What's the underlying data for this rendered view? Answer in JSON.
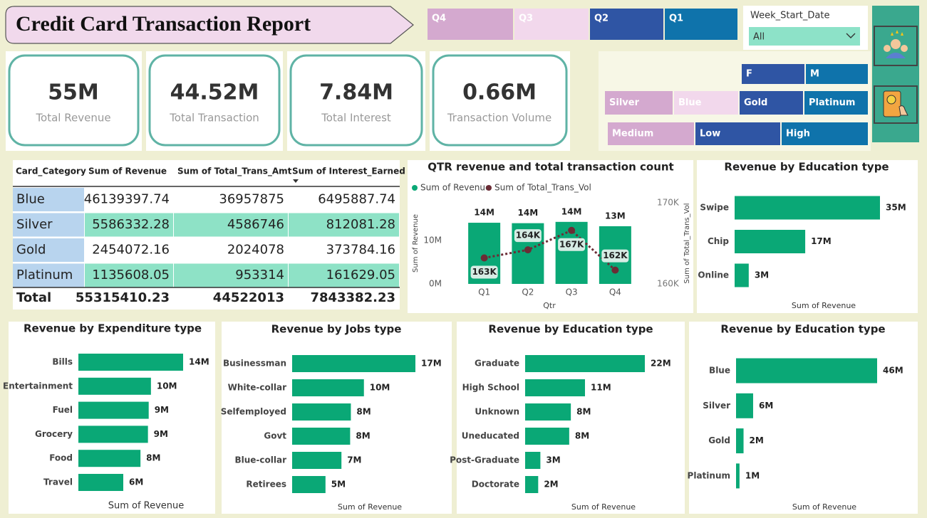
{
  "title": "Credit Card Transaction Report",
  "quarter_slicer": [
    "Q4",
    "Q3",
    "Q2",
    "Q1"
  ],
  "week_slicer": {
    "label": "Week_Start_Date",
    "selected": "All"
  },
  "gender_slicer": [
    "F",
    "M"
  ],
  "card_slicer": [
    "Silver",
    "Blue",
    "Gold",
    "Platinum"
  ],
  "income_slicer": [
    "Medium",
    "Low",
    "High"
  ],
  "kpis": [
    {
      "value": "55M",
      "label": "Total Revenue"
    },
    {
      "value": "44.52M",
      "label": "Total Transaction"
    },
    {
      "value": "7.84M",
      "label": "Total Interest"
    },
    {
      "value": "0.66M",
      "label": "Transaction Volume"
    }
  ],
  "table": {
    "headers": [
      "Card_Category",
      "Sum of Revenue",
      "Sum of Total_Trans_Amt",
      "Sum of Interest_Earned"
    ],
    "rows": [
      [
        "Blue",
        46139397.74,
        36957875,
        6495887.74
      ],
      [
        "Silver",
        5586332.28,
        4586746,
        812081.28
      ],
      [
        "Gold",
        2454072.16,
        2024078,
        373784.16
      ],
      [
        "Platinum",
        1135608.05,
        953314,
        161629.05
      ]
    ],
    "total": [
      "Total",
      55315410.23,
      44522013,
      7843382.23
    ]
  },
  "chart_data": [
    {
      "type": "combo",
      "title": "QTR revenue and total transaction count",
      "categories": [
        "Q1",
        "Q2",
        "Q3",
        "Q4"
      ],
      "series": [
        {
          "name": "Sum of Revenue",
          "color": "#0aa876",
          "kind": "bar",
          "values": [
            14100000,
            14000000,
            14300000,
            13300000
          ],
          "value_labels": [
            "14M",
            "14M",
            "14M",
            "13M"
          ]
        },
        {
          "name": "Sum of Total_Trans_Vol",
          "color": "#6b2c35",
          "kind": "line",
          "axis": "y2",
          "values": [
            163200,
            164200,
            166600,
            161700
          ],
          "value_labels": [
            "163K",
            "164K",
            "167K",
            "162K"
          ]
        }
      ],
      "x_label": "Qtr",
      "y_label": "Sum of Revenue",
      "y2_label": "Sum of Total_Trans_Vol",
      "ylim": [
        0,
        18700000
      ],
      "yticks": [
        {
          "value": 0,
          "label": "0M"
        },
        {
          "value": 10000000,
          "label": "10M"
        }
      ],
      "y2lim": [
        160000,
        170000
      ],
      "y2ticks": [
        {
          "value": 160000,
          "label": "160K"
        },
        {
          "value": 170000,
          "label": "170K"
        }
      ]
    },
    {
      "type": "hbar",
      "title": "Revenue by Education type",
      "color": "#0aa876",
      "categories": [
        "Swipe",
        "Chip",
        "Online"
      ],
      "values": [
        35000000,
        17000000,
        3400000
      ],
      "value_labels": [
        "35M",
        "17M",
        "3M"
      ],
      "x_label": "Sum of Revenue"
    },
    {
      "type": "hbar",
      "title": "Revenue by Expenditure type",
      "color": "#0aa876",
      "categories": [
        "Bills",
        "Entertainment",
        "Fuel",
        "Grocery",
        "Food",
        "Travel"
      ],
      "values": [
        14000000,
        9700000,
        9400000,
        9300000,
        8300000,
        6000000
      ],
      "value_labels": [
        "14M",
        "10M",
        "9M",
        "9M",
        "8M",
        "6M"
      ],
      "x_label": "Sum of Revenue"
    },
    {
      "type": "hbar",
      "title": "Revenue by Jobs type",
      "color": "#0aa876",
      "categories": [
        "Businessman",
        "White-collar",
        "Selfemployed",
        "Govt",
        "Blue-collar",
        "Retirees"
      ],
      "values": [
        17000000,
        9900000,
        8100000,
        8000000,
        6800000,
        4600000
      ],
      "value_labels": [
        "17M",
        "10M",
        "8M",
        "8M",
        "7M",
        "5M"
      ],
      "x_label": "Sum of Revenue"
    },
    {
      "type": "hbar",
      "title": "Revenue by Education type",
      "color": "#0aa876",
      "categories": [
        "Graduate",
        "High School",
        "Unknown",
        "Uneducated",
        "Post-Graduate",
        "Doctorate"
      ],
      "values": [
        22000000,
        11000000,
        8400000,
        8100000,
        2800000,
        2400000
      ],
      "value_labels": [
        "22M",
        "11M",
        "8M",
        "8M",
        "3M",
        "2M"
      ],
      "x_label": "Sum of Revenue"
    },
    {
      "type": "hbar",
      "title": "Revenue by Education type",
      "color": "#0aa876",
      "categories": [
        "Blue",
        "Silver",
        "Gold",
        "Platinum"
      ],
      "values": [
        46139397.74,
        5586332.28,
        2454072.16,
        1135608.05
      ],
      "value_labels": [
        "46M",
        "6M",
        "2M",
        "1M"
      ],
      "x_label": "Sum of Revenue"
    }
  ]
}
